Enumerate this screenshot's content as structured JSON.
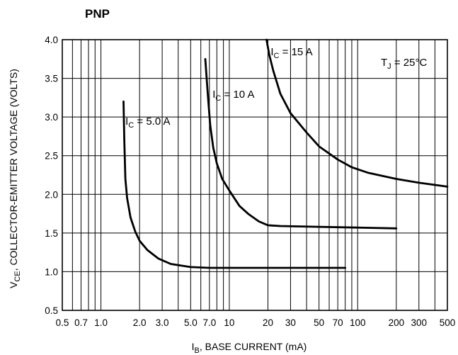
{
  "chart_data": {
    "type": "line",
    "title": "PNP",
    "xlabel": {
      "main": "I",
      "sub": "B",
      "rest": ", BASE CURRENT (mA)"
    },
    "ylabel": {
      "main": "V",
      "sub": "CE",
      "rest": ", COLLECTOR-EMITTER VOLTAGE (VOLTS)"
    },
    "x_scale": "log",
    "xlim": [
      0.5,
      500
    ],
    "ylim": [
      0.5,
      4.0
    ],
    "grid": true,
    "x_ticks": [
      {
        "value": 0.5,
        "label": "0.5"
      },
      {
        "value": 0.7,
        "label": "0.7"
      },
      {
        "value": 1.0,
        "label": "1.0"
      },
      {
        "value": 2.0,
        "label": "2.0"
      },
      {
        "value": 3.0,
        "label": "3.0"
      },
      {
        "value": 5.0,
        "label": "5.0"
      },
      {
        "value": 7.0,
        "label": "7.0"
      },
      {
        "value": 10,
        "label": "10"
      },
      {
        "value": 20,
        "label": "20"
      },
      {
        "value": 30,
        "label": "30"
      },
      {
        "value": 50,
        "label": "50"
      },
      {
        "value": 70,
        "label": "70"
      },
      {
        "value": 100,
        "label": "100"
      },
      {
        "value": 200,
        "label": "200"
      },
      {
        "value": 300,
        "label": "300"
      },
      {
        "value": 500,
        "label": "500"
      }
    ],
    "y_ticks": [
      {
        "value": 0.5,
        "label": "0.5"
      },
      {
        "value": 1.0,
        "label": "1.0"
      },
      {
        "value": 1.5,
        "label": "1.5"
      },
      {
        "value": 2.0,
        "label": "2.0"
      },
      {
        "value": 2.5,
        "label": "2.5"
      },
      {
        "value": 3.0,
        "label": "3.0"
      },
      {
        "value": 3.5,
        "label": "3.5"
      },
      {
        "value": 4.0,
        "label": "4.0"
      }
    ],
    "condition": {
      "main": "T",
      "sub": "J",
      "rest": " = 25°C"
    },
    "series": [
      {
        "name": {
          "main": "I",
          "sub": "C",
          "rest": " = 5.0 A"
        },
        "label_at": [
          1.55,
          2.9
        ],
        "points": [
          [
            1.5,
            3.2
          ],
          [
            1.52,
            2.7
          ],
          [
            1.55,
            2.2
          ],
          [
            1.6,
            1.95
          ],
          [
            1.7,
            1.7
          ],
          [
            1.85,
            1.52
          ],
          [
            2.0,
            1.4
          ],
          [
            2.3,
            1.28
          ],
          [
            2.8,
            1.17
          ],
          [
            3.5,
            1.1
          ],
          [
            5.0,
            1.06
          ],
          [
            7.0,
            1.05
          ],
          [
            10,
            1.05
          ],
          [
            20,
            1.05
          ],
          [
            50,
            1.05
          ],
          [
            80,
            1.05
          ]
        ]
      },
      {
        "name": {
          "main": "I",
          "sub": "C",
          "rest": " = 10 A"
        },
        "label_at": [
          7.4,
          3.25
        ],
        "points": [
          [
            6.5,
            3.75
          ],
          [
            6.8,
            3.3
          ],
          [
            7.1,
            2.9
          ],
          [
            7.5,
            2.6
          ],
          [
            8.0,
            2.4
          ],
          [
            8.8,
            2.2
          ],
          [
            10,
            2.05
          ],
          [
            12,
            1.85
          ],
          [
            14,
            1.75
          ],
          [
            17,
            1.65
          ],
          [
            20,
            1.6
          ],
          [
            25,
            1.59
          ],
          [
            50,
            1.58
          ],
          [
            100,
            1.57
          ],
          [
            200,
            1.56
          ]
        ]
      },
      {
        "name": {
          "main": "I",
          "sub": "C",
          "rest": " = 15 A"
        },
        "label_at": [
          21,
          3.8
        ],
        "points": [
          [
            19.5,
            4.0
          ],
          [
            20.5,
            3.8
          ],
          [
            22,
            3.6
          ],
          [
            25,
            3.3
          ],
          [
            30,
            3.05
          ],
          [
            40,
            2.8
          ],
          [
            50,
            2.62
          ],
          [
            70,
            2.45
          ],
          [
            90,
            2.35
          ],
          [
            120,
            2.28
          ],
          [
            200,
            2.2
          ],
          [
            300,
            2.15
          ],
          [
            500,
            2.1
          ]
        ]
      }
    ]
  }
}
